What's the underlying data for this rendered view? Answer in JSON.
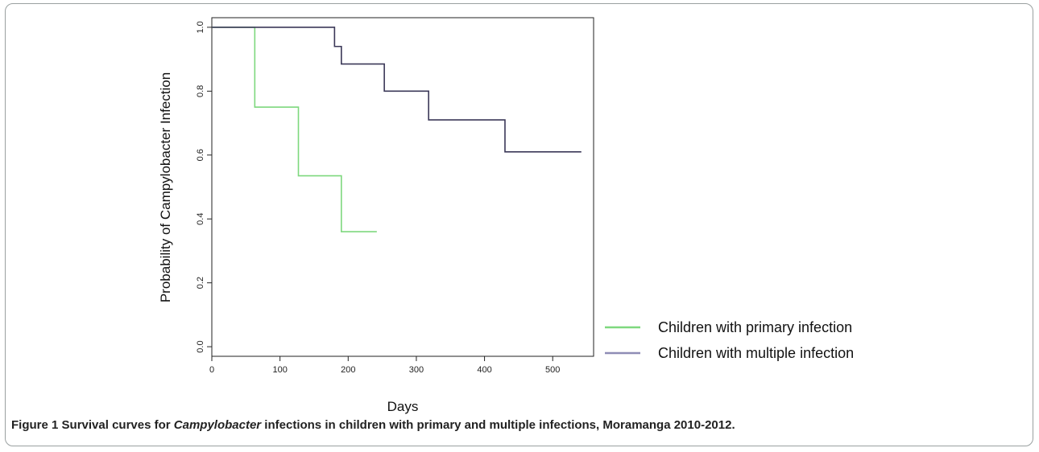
{
  "caption": {
    "label": "Figure 1",
    "before": "Survival curves for ",
    "italic": "Campylobacter",
    "after": " infections in children with primary and multiple infections, Moramanga 2010-2012."
  },
  "chart_data": {
    "type": "line",
    "step": true,
    "title": "",
    "xlabel": "Days",
    "ylabel": "Probability of Campylobacter Infection",
    "xlim": [
      0,
      560
    ],
    "ylim": [
      -0.03,
      1.03
    ],
    "xticks": [
      0,
      100,
      200,
      300,
      400,
      500
    ],
    "yticks": [
      0.0,
      0.2,
      0.4,
      0.6,
      0.8,
      1.0
    ],
    "ytick_labels": [
      "0.0",
      "0.2",
      "0.4",
      "0.6",
      "0.8",
      "1.0"
    ],
    "grid": false,
    "legend_position": "bottom-right, outside plot",
    "series": [
      {
        "name": "Children with primary infection",
        "color": "#7ed87e",
        "x": [
          0,
          63,
          127,
          190,
          242
        ],
        "y": [
          1.0,
          0.75,
          0.535,
          0.36,
          0.36
        ]
      },
      {
        "name": "Children with multiple infection",
        "color": "#3b3858",
        "legend_color": "#8f8db5",
        "x": [
          0,
          180,
          190,
          253,
          318,
          430,
          542
        ],
        "y": [
          1.0,
          0.94,
          0.885,
          0.8,
          0.71,
          0.61,
          0.61
        ]
      }
    ]
  }
}
